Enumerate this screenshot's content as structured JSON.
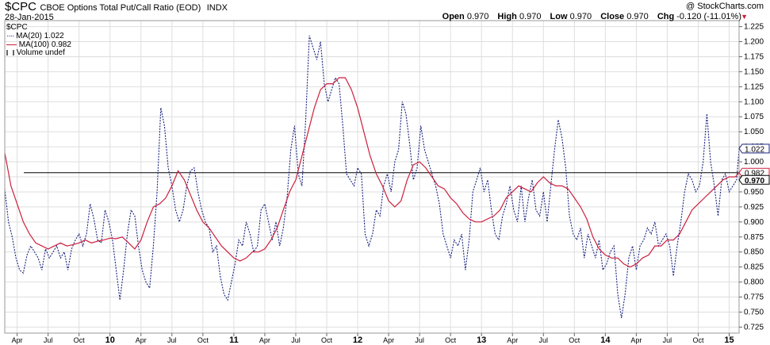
{
  "header": {
    "symbol": "$CPC",
    "name": "CBOE Options Total Put/Call Ratio (EOD)",
    "exchange": "INDX",
    "date": "28-Jan-2015",
    "copyright": "@ StockCharts.com",
    "open_label": "Open",
    "open": "0.970",
    "high_label": "High",
    "high": "0.970",
    "low_label": "Low",
    "low": "0.970",
    "close_label": "Close",
    "close": "0.970",
    "chg_label": "Chg",
    "chg": "-0.120 (-11.01%)"
  },
  "legend": [
    {
      "label": "$CPC"
    },
    {
      "label": "MA(20) 1.022"
    },
    {
      "label": "MA(100) 0.982"
    },
    {
      "label": "Volume undef"
    }
  ],
  "colors": {
    "ma20": "#1a237e",
    "ma100": "#cc1f3c",
    "grid": "#dedede",
    "hline": "#000000",
    "chg_arrow": "#cc1f3c"
  },
  "chart_data": {
    "type": "line",
    "title": "CBOE Options Total Put/Call Ratio (EOD)",
    "x_range": [
      2009.15,
      2015.08
    ],
    "ylim": [
      0.715,
      1.235
    ],
    "y_ticks": [
      0.725,
      0.75,
      0.775,
      0.8,
      0.825,
      0.85,
      0.875,
      0.9,
      0.925,
      0.95,
      0.975,
      1.0,
      1.025,
      1.05,
      1.075,
      1.1,
      1.125,
      1.15,
      1.175,
      1.2,
      1.225
    ],
    "x_ticks": [
      {
        "label": "Apr",
        "x": 2009.25
      },
      {
        "label": "Jul",
        "x": 2009.5
      },
      {
        "label": "Oct",
        "x": 2009.75
      },
      {
        "label": "10",
        "x": 2010.0,
        "bold": true
      },
      {
        "label": "Apr",
        "x": 2010.25
      },
      {
        "label": "Jul",
        "x": 2010.5
      },
      {
        "label": "Oct",
        "x": 2010.75
      },
      {
        "label": "11",
        "x": 2011.0,
        "bold": true
      },
      {
        "label": "Apr",
        "x": 2011.25
      },
      {
        "label": "Jul",
        "x": 2011.5
      },
      {
        "label": "Oct",
        "x": 2011.75
      },
      {
        "label": "12",
        "x": 2012.0,
        "bold": true
      },
      {
        "label": "Apr",
        "x": 2012.25
      },
      {
        "label": "Jul",
        "x": 2012.5
      },
      {
        "label": "Oct",
        "x": 2012.75
      },
      {
        "label": "13",
        "x": 2013.0,
        "bold": true
      },
      {
        "label": "Apr",
        "x": 2013.25
      },
      {
        "label": "Jul",
        "x": 2013.5
      },
      {
        "label": "Oct",
        "x": 2013.75
      },
      {
        "label": "14",
        "x": 2014.0,
        "bold": true
      },
      {
        "label": "Apr",
        "x": 2014.25
      },
      {
        "label": "Jul",
        "x": 2014.5
      },
      {
        "label": "Oct",
        "x": 2014.75
      },
      {
        "label": "15",
        "x": 2015.0,
        "bold": true
      }
    ],
    "hline": 0.982,
    "grid": true,
    "legend_position": "top-left",
    "price_labels": [
      {
        "value": 1.022,
        "text": "1.022",
        "series": "MA(20)"
      },
      {
        "value": 0.982,
        "text": "0.982",
        "series": "MA(100)"
      },
      {
        "value": 0.97,
        "text": "0.970",
        "series": "$CPC"
      }
    ],
    "series": [
      {
        "name": "MA(20)",
        "style": "dotted",
        "x": [
          2009.15,
          2009.18,
          2009.21,
          2009.24,
          2009.27,
          2009.3,
          2009.33,
          2009.36,
          2009.39,
          2009.42,
          2009.45,
          2009.48,
          2009.51,
          2009.54,
          2009.57,
          2009.6,
          2009.63,
          2009.66,
          2009.69,
          2009.72,
          2009.75,
          2009.78,
          2009.81,
          2009.84,
          2009.87,
          2009.9,
          2009.93,
          2009.96,
          2009.99,
          2010.02,
          2010.05,
          2010.08,
          2010.11,
          2010.14,
          2010.17,
          2010.2,
          2010.23,
          2010.26,
          2010.29,
          2010.32,
          2010.35,
          2010.38,
          2010.41,
          2010.44,
          2010.47,
          2010.5,
          2010.53,
          2010.56,
          2010.59,
          2010.62,
          2010.65,
          2010.68,
          2010.71,
          2010.74,
          2010.77,
          2010.8,
          2010.83,
          2010.86,
          2010.89,
          2010.92,
          2010.95,
          2010.98,
          2011.01,
          2011.04,
          2011.07,
          2011.1,
          2011.13,
          2011.16,
          2011.19,
          2011.22,
          2011.25,
          2011.28,
          2011.31,
          2011.34,
          2011.37,
          2011.4,
          2011.43,
          2011.46,
          2011.49,
          2011.52,
          2011.55,
          2011.58,
          2011.61,
          2011.64,
          2011.67,
          2011.7,
          2011.73,
          2011.76,
          2011.79,
          2011.82,
          2011.85,
          2011.88,
          2011.91,
          2011.94,
          2011.97,
          2012.0,
          2012.03,
          2012.06,
          2012.09,
          2012.12,
          2012.15,
          2012.18,
          2012.21,
          2012.24,
          2012.27,
          2012.3,
          2012.33,
          2012.36,
          2012.39,
          2012.42,
          2012.45,
          2012.48,
          2012.51,
          2012.54,
          2012.57,
          2012.6,
          2012.63,
          2012.66,
          2012.69,
          2012.72,
          2012.75,
          2012.78,
          2012.81,
          2012.84,
          2012.87,
          2012.9,
          2012.93,
          2012.96,
          2012.99,
          2013.02,
          2013.05,
          2013.08,
          2013.11,
          2013.14,
          2013.17,
          2013.2,
          2013.23,
          2013.26,
          2013.29,
          2013.32,
          2013.35,
          2013.38,
          2013.41,
          2013.44,
          2013.47,
          2013.5,
          2013.53,
          2013.56,
          2013.59,
          2013.62,
          2013.65,
          2013.68,
          2013.71,
          2013.74,
          2013.77,
          2013.8,
          2013.83,
          2013.86,
          2013.89,
          2013.92,
          2013.95,
          2013.98,
          2014.01,
          2014.04,
          2014.07,
          2014.1,
          2014.13,
          2014.16,
          2014.19,
          2014.22,
          2014.25,
          2014.28,
          2014.31,
          2014.34,
          2014.37,
          2014.4,
          2014.43,
          2014.46,
          2014.49,
          2014.52,
          2014.55,
          2014.58,
          2014.61,
          2014.64,
          2014.67,
          2014.7,
          2014.73,
          2014.76,
          2014.79,
          2014.82,
          2014.85,
          2014.88,
          2014.91,
          2014.94,
          2014.97,
          2015.0,
          2015.03,
          2015.06,
          2015.08
        ],
        "values": [
          0.955,
          0.9,
          0.875,
          0.84,
          0.82,
          0.815,
          0.845,
          0.86,
          0.85,
          0.84,
          0.82,
          0.855,
          0.84,
          0.85,
          0.86,
          0.84,
          0.85,
          0.82,
          0.855,
          0.87,
          0.88,
          0.86,
          0.88,
          0.93,
          0.905,
          0.87,
          0.865,
          0.92,
          0.9,
          0.87,
          0.82,
          0.77,
          0.82,
          0.88,
          0.92,
          0.91,
          0.86,
          0.82,
          0.8,
          0.79,
          0.86,
          0.95,
          1.09,
          1.06,
          0.99,
          0.96,
          0.92,
          0.9,
          0.92,
          0.96,
          0.985,
          0.99,
          0.95,
          0.92,
          0.9,
          0.89,
          0.85,
          0.86,
          0.81,
          0.78,
          0.77,
          0.8,
          0.83,
          0.87,
          0.86,
          0.9,
          0.88,
          0.85,
          0.86,
          0.92,
          0.93,
          0.9,
          0.87,
          0.9,
          0.86,
          0.89,
          0.94,
          1.02,
          1.06,
          0.98,
          0.96,
          1.07,
          1.21,
          1.19,
          1.17,
          1.2,
          1.13,
          1.1,
          1.12,
          1.14,
          1.13,
          1.06,
          0.98,
          0.97,
          0.96,
          0.99,
          0.98,
          0.88,
          0.86,
          0.88,
          0.92,
          0.91,
          0.96,
          0.98,
          0.95,
          1.0,
          1.02,
          1.1,
          1.08,
          1.03,
          0.97,
          0.99,
          1.06,
          1.02,
          1.0,
          0.98,
          0.96,
          0.93,
          0.88,
          0.86,
          0.84,
          0.87,
          0.86,
          0.88,
          0.82,
          0.87,
          0.95,
          0.97,
          0.99,
          0.95,
          0.97,
          0.92,
          0.88,
          0.87,
          0.91,
          0.93,
          0.96,
          0.92,
          0.9,
          0.96,
          0.9,
          0.94,
          0.97,
          0.92,
          0.91,
          0.95,
          0.9,
          0.96,
          1.02,
          1.07,
          1.04,
          0.99,
          0.91,
          0.88,
          0.87,
          0.89,
          0.84,
          0.88,
          0.86,
          0.84,
          0.87,
          0.82,
          0.83,
          0.85,
          0.86,
          0.78,
          0.74,
          0.78,
          0.84,
          0.86,
          0.82,
          0.86,
          0.87,
          0.89,
          0.88,
          0.9,
          0.86,
          0.87,
          0.88,
          0.86,
          0.81,
          0.86,
          0.9,
          0.95,
          0.98,
          0.97,
          0.95,
          0.96,
          1.0,
          1.08,
          1.0,
          0.96,
          0.91,
          0.97,
          0.98,
          0.95,
          0.96,
          0.97,
          1.022
        ]
      },
      {
        "name": "MA(100)",
        "style": "solid",
        "x": [
          2009.15,
          2009.2,
          2009.25,
          2009.3,
          2009.35,
          2009.4,
          2009.45,
          2009.5,
          2009.55,
          2009.6,
          2009.65,
          2009.7,
          2009.75,
          2009.8,
          2009.85,
          2009.9,
          2009.95,
          2010.0,
          2010.05,
          2010.1,
          2010.15,
          2010.2,
          2010.25,
          2010.3,
          2010.35,
          2010.4,
          2010.45,
          2010.5,
          2010.55,
          2010.6,
          2010.65,
          2010.7,
          2010.75,
          2010.8,
          2010.85,
          2010.9,
          2010.95,
          2011.0,
          2011.05,
          2011.1,
          2011.15,
          2011.2,
          2011.25,
          2011.3,
          2011.35,
          2011.4,
          2011.45,
          2011.5,
          2011.55,
          2011.6,
          2011.65,
          2011.7,
          2011.75,
          2011.8,
          2011.85,
          2011.9,
          2011.95,
          2012.0,
          2012.05,
          2012.1,
          2012.15,
          2012.2,
          2012.25,
          2012.3,
          2012.35,
          2012.4,
          2012.45,
          2012.5,
          2012.55,
          2012.6,
          2012.65,
          2012.7,
          2012.75,
          2012.8,
          2012.85,
          2012.9,
          2012.95,
          2013.0,
          2013.05,
          2013.1,
          2013.15,
          2013.2,
          2013.25,
          2013.3,
          2013.35,
          2013.4,
          2013.45,
          2013.5,
          2013.55,
          2013.6,
          2013.65,
          2013.7,
          2013.75,
          2013.8,
          2013.85,
          2013.9,
          2013.95,
          2014.0,
          2014.05,
          2014.1,
          2014.15,
          2014.2,
          2014.25,
          2014.3,
          2014.35,
          2014.4,
          2014.45,
          2014.5,
          2014.55,
          2014.6,
          2014.65,
          2014.7,
          2014.75,
          2014.8,
          2014.85,
          2014.9,
          2014.95,
          2015.0,
          2015.05,
          2015.08
        ],
        "values": [
          1.015,
          0.96,
          0.93,
          0.9,
          0.88,
          0.865,
          0.86,
          0.855,
          0.86,
          0.865,
          0.86,
          0.862,
          0.865,
          0.87,
          0.865,
          0.868,
          0.87,
          0.873,
          0.872,
          0.875,
          0.865,
          0.855,
          0.87,
          0.9,
          0.925,
          0.93,
          0.94,
          0.96,
          0.985,
          0.97,
          0.945,
          0.92,
          0.9,
          0.89,
          0.875,
          0.86,
          0.85,
          0.84,
          0.835,
          0.84,
          0.85,
          0.85,
          0.855,
          0.87,
          0.89,
          0.92,
          0.95,
          0.97,
          1.01,
          1.05,
          1.09,
          1.12,
          1.13,
          1.13,
          1.14,
          1.14,
          1.12,
          1.09,
          1.05,
          1.01,
          0.98,
          0.96,
          0.935,
          0.925,
          0.935,
          0.97,
          0.995,
          1.0,
          0.99,
          0.975,
          0.96,
          0.955,
          0.94,
          0.93,
          0.915,
          0.905,
          0.9,
          0.9,
          0.905,
          0.91,
          0.92,
          0.94,
          0.95,
          0.96,
          0.955,
          0.95,
          0.965,
          0.975,
          0.965,
          0.96,
          0.96,
          0.955,
          0.94,
          0.925,
          0.905,
          0.875,
          0.855,
          0.845,
          0.84,
          0.84,
          0.83,
          0.825,
          0.83,
          0.84,
          0.845,
          0.86,
          0.86,
          0.87,
          0.87,
          0.88,
          0.9,
          0.92,
          0.93,
          0.94,
          0.95,
          0.96,
          0.97,
          0.975,
          0.975,
          0.982
        ]
      }
    ]
  }
}
